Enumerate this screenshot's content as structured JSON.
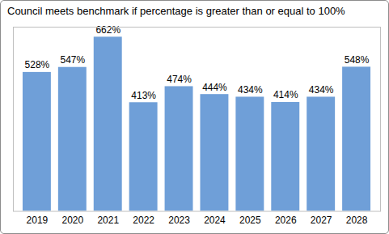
{
  "chart_data": {
    "type": "bar",
    "title": "Council meets benchmark if percentage is greater than or equal to 100%",
    "categories": [
      "2019",
      "2020",
      "2021",
      "2022",
      "2023",
      "2024",
      "2025",
      "2026",
      "2027",
      "2028"
    ],
    "values": [
      528,
      547,
      662,
      413,
      474,
      444,
      434,
      414,
      434,
      548
    ],
    "value_labels": [
      "528%",
      "547%",
      "662%",
      "413%",
      "474%",
      "444%",
      "434%",
      "414%",
      "434%",
      "548%"
    ],
    "color": "#6f9fd8",
    "ylim": [
      0,
      700
    ],
    "yticks": [],
    "grid": false,
    "data_labels": true,
    "tick_labels": "x"
  }
}
